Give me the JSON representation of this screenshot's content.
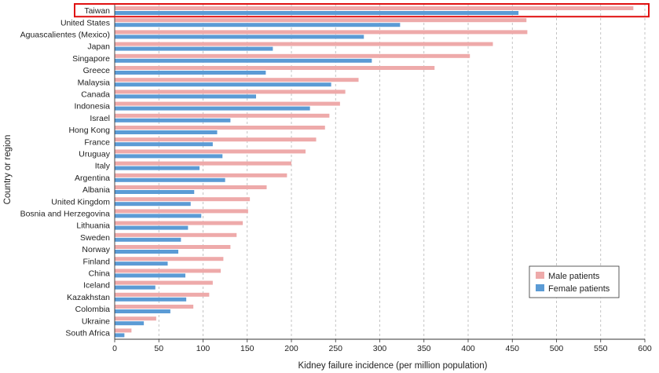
{
  "chart_data": {
    "type": "bar",
    "orientation": "horizontal",
    "title": "",
    "xlabel": "Kidney failure incidence (per million population)",
    "ylabel": "Country or region",
    "xlim": [
      0,
      600
    ],
    "xticks": [
      0,
      50,
      100,
      150,
      200,
      250,
      300,
      350,
      400,
      450,
      500,
      550,
      600
    ],
    "grid": "vertical dashed",
    "legend_position": "bottom-right",
    "highlight": "Taiwan",
    "categories": [
      "Taiwan",
      "United States",
      "Aguascalientes (Mexico)",
      "Japan",
      "Singapore",
      "Greece",
      "Malaysia",
      "Canada",
      "Indonesia",
      "Israel",
      "Hong Kong",
      "France",
      "Uruguay",
      "Italy",
      "Argentina",
      "Albania",
      "United Kingdom",
      "Bosnia and Herzegovina",
      "Lithuania",
      "Sweden",
      "Norway",
      "Finland",
      "China",
      "Iceland",
      "Kazakhstan",
      "Colombia",
      "Ukraine",
      "South Africa"
    ],
    "series": [
      {
        "name": "Male patients",
        "color": "#eeaaaa",
        "values": [
          587,
          466,
          467,
          428,
          402,
          362,
          276,
          261,
          255,
          243,
          238,
          228,
          216,
          200,
          195,
          172,
          153,
          151,
          145,
          138,
          131,
          123,
          120,
          111,
          107,
          89,
          47,
          19
        ]
      },
      {
        "name": "Female patients",
        "color": "#5b9bd5",
        "values": [
          457,
          323,
          282,
          179,
          291,
          171,
          245,
          160,
          221,
          131,
          116,
          111,
          122,
          96,
          125,
          90,
          86,
          98,
          83,
          75,
          72,
          60,
          80,
          46,
          81,
          63,
          33,
          11
        ]
      }
    ]
  }
}
